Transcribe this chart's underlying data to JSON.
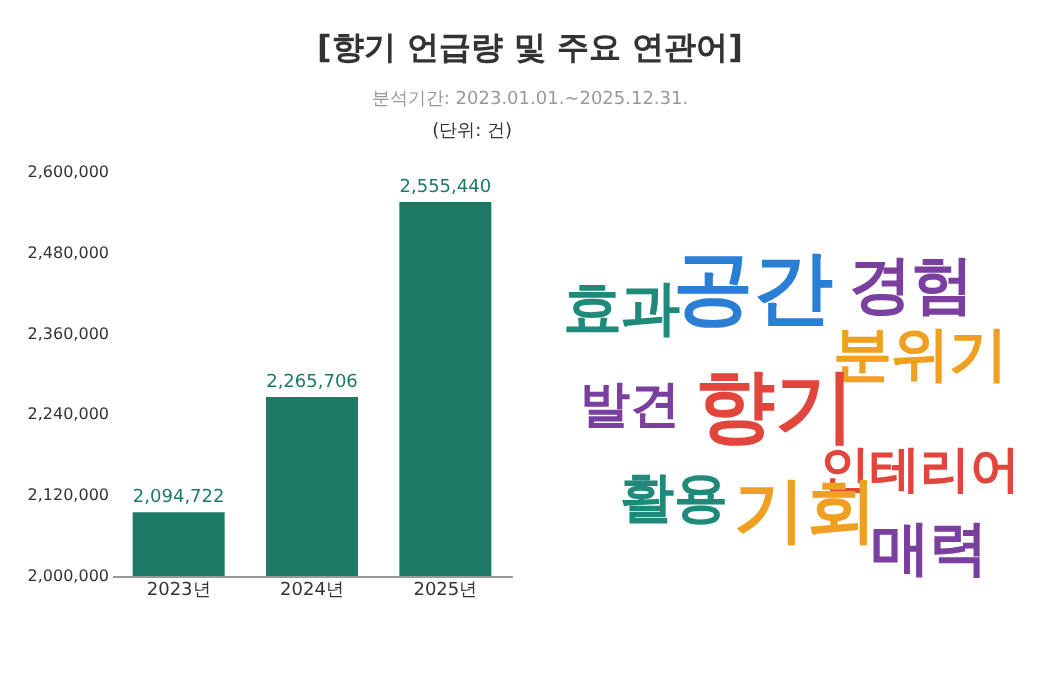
{
  "chart_data": [
    {
      "type": "bar",
      "title": "[향기 언급량 및 주요 연관어]",
      "subtitle": "분석기간: 2023.01.01.~2025.12.31.",
      "annotations": [
        "(단위: 건)"
      ],
      "categories": [
        "2023년",
        "2024년",
        "2025년"
      ],
      "values": [
        2094722,
        2265706,
        2555440
      ],
      "value_labels": [
        "2,094,722",
        "2,265,706",
        "2,555,440"
      ],
      "color": "#1d7a64",
      "ylim": [
        2000000,
        2600000
      ],
      "yticks": [
        {
          "value": 2000000,
          "label": "2,000,000"
        },
        {
          "value": 2120000,
          "label": "2,120,000"
        },
        {
          "value": 2240000,
          "label": "2,240,000"
        },
        {
          "value": 2360000,
          "label": "2,360,000"
        },
        {
          "value": 2480000,
          "label": "2,480,000"
        },
        {
          "value": 2600000,
          "label": "2,600,000"
        }
      ],
      "grid": false
    },
    {
      "type": "other",
      "annotations": [
        "공간",
        "경험",
        "효과",
        "분위기",
        "발견",
        "향기",
        "인테리어",
        "활용",
        "기회",
        "매력"
      ]
    }
  ]
}
